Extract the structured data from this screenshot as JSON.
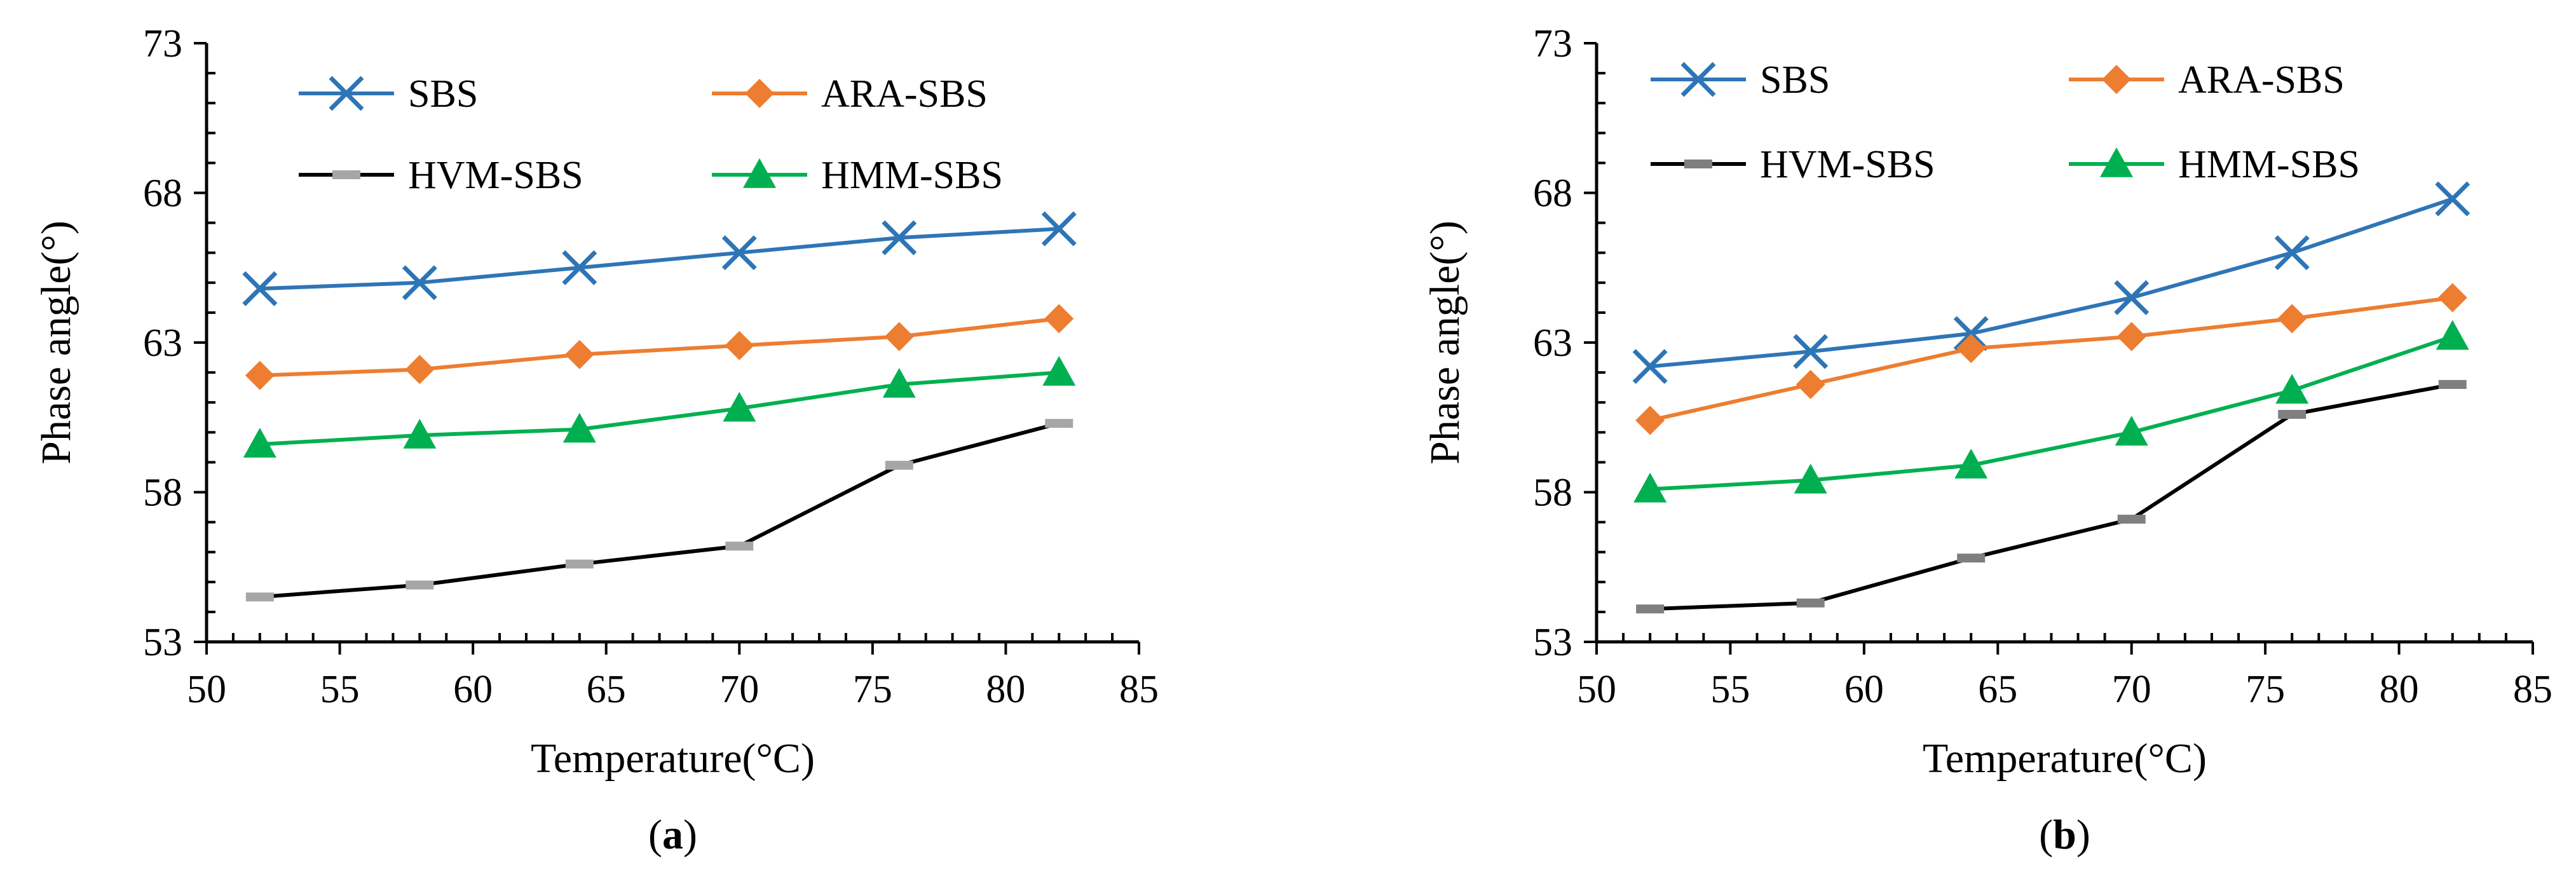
{
  "chart_data": [
    {
      "type": "line",
      "panel_label": "a",
      "xlabel": "Temperature(°C)",
      "ylabel": "Phase angle(°)",
      "xlim": [
        50,
        85
      ],
      "ylim": [
        53,
        73
      ],
      "xticks": [
        50,
        55,
        60,
        65,
        70,
        75,
        80,
        85
      ],
      "yticks": [
        53,
        58,
        63,
        68,
        73
      ],
      "x": [
        52,
        58,
        64,
        70,
        76,
        82
      ],
      "legend_position": "top",
      "series": [
        {
          "name": "SBS",
          "color": "#2E75B6",
          "marker": "x",
          "values": [
            64.8,
            65.0,
            65.5,
            66.0,
            66.5,
            66.8
          ]
        },
        {
          "name": "ARA-SBS",
          "color": "#ED7D31",
          "marker": "diamond",
          "values": [
            61.9,
            62.1,
            62.6,
            62.9,
            63.2,
            63.8
          ]
        },
        {
          "name": "HVM-SBS",
          "color": "#A6A6A6",
          "line_color": "#000000",
          "marker": "dash",
          "values": [
            54.5,
            54.9,
            55.6,
            56.2,
            58.9,
            60.3
          ]
        },
        {
          "name": "HMM-SBS",
          "color": "#00B050",
          "marker": "triangle",
          "values": [
            59.6,
            59.9,
            60.1,
            60.8,
            61.6,
            62.0
          ]
        }
      ]
    },
    {
      "type": "line",
      "panel_label": "b",
      "xlabel": "Temperature(°C)",
      "ylabel": "Phase angle(°)",
      "xlim": [
        50,
        85
      ],
      "ylim": [
        53,
        73
      ],
      "xticks": [
        50,
        55,
        60,
        65,
        70,
        75,
        80,
        85
      ],
      "yticks": [
        53,
        58,
        63,
        68,
        73
      ],
      "x": [
        52,
        58,
        64,
        70,
        76,
        82
      ],
      "legend_position": "top",
      "series": [
        {
          "name": "SBS",
          "color": "#2E75B6",
          "marker": "x",
          "values": [
            62.2,
            62.7,
            63.3,
            64.5,
            66.0,
            67.8
          ]
        },
        {
          "name": "ARA-SBS",
          "color": "#ED7D31",
          "marker": "diamond",
          "values": [
            60.4,
            61.6,
            62.8,
            63.2,
            63.8,
            64.5
          ]
        },
        {
          "name": "HVM-SBS",
          "color": "#7F7F7F",
          "line_color": "#000000",
          "marker": "dash",
          "values": [
            54.1,
            54.3,
            55.8,
            57.1,
            60.6,
            61.6
          ]
        },
        {
          "name": "HMM-SBS",
          "color": "#00B050",
          "marker": "triangle",
          "values": [
            58.1,
            58.4,
            58.9,
            60.0,
            61.4,
            63.2
          ]
        }
      ]
    }
  ]
}
